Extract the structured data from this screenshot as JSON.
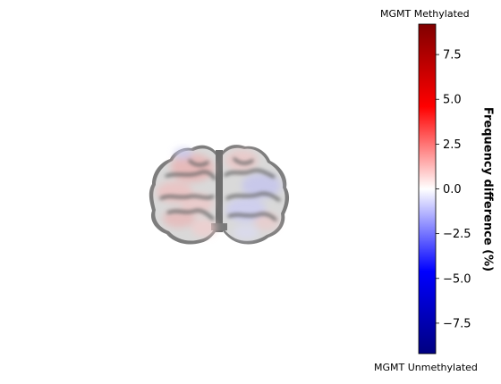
{
  "chart_data": {
    "type": "heatmap",
    "title": "",
    "colorbar": {
      "label": "Frequency difference (%)",
      "top_label": "MGMT Methylated",
      "bottom_label": "MGMT Unmethylated",
      "vmin": -9.2,
      "vmax": 9.2,
      "ticks": [
        7.5,
        5.0,
        2.5,
        0.0,
        -2.5,
        -5.0,
        -7.5
      ],
      "tick_labels": [
        "7.5",
        "5.0",
        "2.5",
        "0.0",
        "−2.5",
        "−5.0",
        "−7.5"
      ],
      "colormap": "seismic",
      "colors": {
        "max": "#800000",
        "high": "#ff0000",
        "mid": "#ffffff",
        "low": "#0000ff",
        "min": "#000080"
      }
    },
    "image": {
      "description_type": "coronal brain slice overlay",
      "left_hemisphere_tint": "positive",
      "right_hemisphere_tint": "negative",
      "colors": {
        "background_tissue": "#c8c8c8",
        "sulci": "#6b6b6b",
        "positive_tint": "#f2c4c4",
        "negative_tint": "#d6d6f4"
      }
    }
  }
}
